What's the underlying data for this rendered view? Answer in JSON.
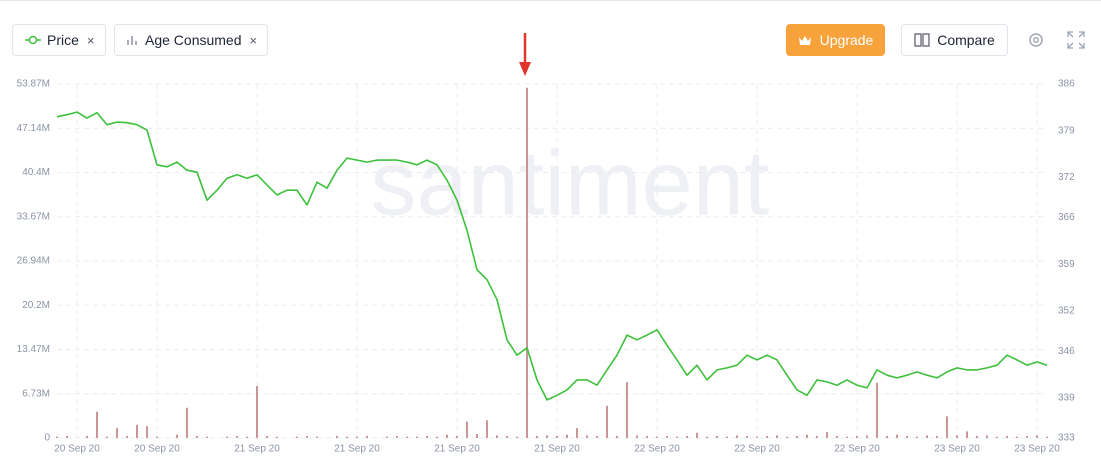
{
  "chart_data": {
    "type": "line-bar",
    "watermark": "santiment",
    "categories": [
      null,
      null,
      "20 Sep 20",
      null,
      null,
      null,
      null,
      null,
      null,
      null,
      "20 Sep 20",
      null,
      null,
      null,
      null,
      null,
      null,
      null,
      null,
      null,
      "21 Sep 20",
      null,
      null,
      null,
      null,
      null,
      null,
      null,
      null,
      null,
      "21 Sep 20",
      null,
      null,
      null,
      null,
      null,
      null,
      null,
      null,
      null,
      "21 Sep 20",
      null,
      null,
      null,
      null,
      null,
      null,
      null,
      null,
      null,
      "21 Sep 20",
      null,
      null,
      null,
      null,
      null,
      null,
      null,
      null,
      null,
      "22 Sep 20",
      null,
      null,
      null,
      null,
      null,
      null,
      null,
      null,
      null,
      "22 Sep 20",
      null,
      null,
      null,
      null,
      null,
      null,
      null,
      null,
      null,
      "22 Sep 20",
      null,
      null,
      null,
      null,
      null,
      null,
      null,
      null,
      null,
      "23 Sep 20",
      null,
      null,
      null,
      null,
      null,
      null,
      null,
      "23 Sep 20",
      null
    ],
    "series": [
      {
        "name": "Price",
        "color": "#3dc03b",
        "axis": "y2",
        "kind": "line",
        "values": [
          381.1,
          381.4,
          381.8,
          380.9,
          381.7,
          379.9,
          380.3,
          380.2,
          379.9,
          379.1,
          373.9,
          373.6,
          374.3,
          373.1,
          372.8,
          368.6,
          370.1,
          371.9,
          372.4,
          371.9,
          372.4,
          370.9,
          369.4,
          370.1,
          370.1,
          367.9,
          371.3,
          370.4,
          373.1,
          374.9,
          374.6,
          374.3,
          374.6,
          374.6,
          374.6,
          374.3,
          373.9,
          374.6,
          373.9,
          371.6,
          368.6,
          364.1,
          358.2,
          356.7,
          353.7,
          347.7,
          345.4,
          346.5,
          341.7,
          338.7,
          339.4,
          340.2,
          341.7,
          341.7,
          340.9,
          343.2,
          345.4,
          348.4,
          347.7,
          348.4,
          349.2,
          346.9,
          344.7,
          342.4,
          343.9,
          341.7,
          343.2,
          343.5,
          343.9,
          345.4,
          344.7,
          345.4,
          344.7,
          342.4,
          340.2,
          339.4,
          341.7,
          341.4,
          340.9,
          341.7,
          340.9,
          340.5,
          343.2,
          342.4,
          342.0,
          342.4,
          342.9,
          342.4,
          342.0,
          342.9,
          343.5,
          343.2,
          343.2,
          343.5,
          343.9,
          345.4,
          344.7,
          343.9,
          344.4,
          343.9
        ]
      },
      {
        "name": "Age Consumed",
        "color": "#c99595",
        "axis": "y",
        "kind": "bar",
        "values": [
          200000,
          300000,
          0,
          300000,
          4000000,
          200000,
          1500000,
          300000,
          2000000,
          1800000,
          200000,
          0,
          500000,
          4600000,
          300000,
          200000,
          0,
          200000,
          300000,
          200000,
          7900000,
          300000,
          200000,
          0,
          200000,
          300000,
          200000,
          0,
          300000,
          200000,
          200000,
          300000,
          0,
          200000,
          300000,
          200000,
          200000,
          300000,
          200000,
          500000,
          300000,
          2500000,
          600000,
          2700000,
          400000,
          300000,
          200000,
          53300000,
          300000,
          400000,
          300000,
          500000,
          1500000,
          400000,
          300000,
          4900000,
          300000,
          8500000,
          400000,
          300000,
          200000,
          300000,
          200000,
          300000,
          800000,
          200000,
          300000,
          200000,
          400000,
          300000,
          200000,
          300000,
          400000,
          200000,
          300000,
          500000,
          300000,
          900000,
          300000,
          200000,
          300000,
          400000,
          8400000,
          300000,
          500000,
          300000,
          200000,
          400000,
          300000,
          3300000,
          400000,
          1000000,
          300000,
          400000,
          200000,
          300000,
          200000,
          300000,
          400000,
          200000
        ]
      }
    ],
    "ylim": [
      0,
      53870000
    ],
    "yticks": [
      0,
      {
        "value": 6730000,
        "label": "6.73M"
      },
      {
        "value": 13470000,
        "label": "13.47M"
      },
      {
        "value": 20200000,
        "label": "20.2M"
      },
      {
        "value": 26940000,
        "label": "26.94M"
      },
      {
        "value": 33670000,
        "label": "33.67M"
      },
      {
        "value": 40400000,
        "label": "40.4M"
      },
      {
        "value": 47140000,
        "label": "47.14M"
      },
      {
        "value": 53870000,
        "label": "53.87M"
      }
    ],
    "y2lim": [
      333,
      386
    ],
    "y2ticks": [
      333,
      339,
      346,
      352,
      359,
      366,
      372,
      379,
      386
    ],
    "grid": true
  },
  "toolbar": {
    "upgrade": "Upgrade",
    "compare": "Compare"
  }
}
